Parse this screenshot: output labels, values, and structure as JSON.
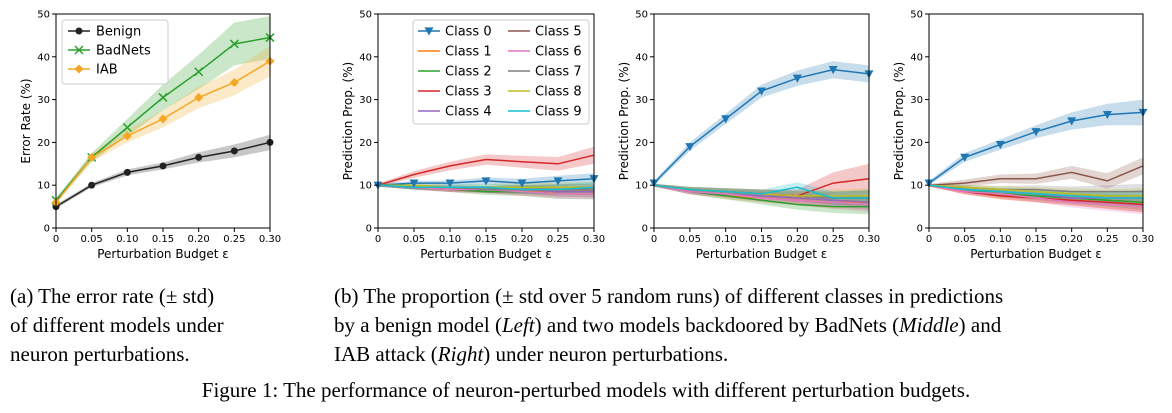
{
  "captions": {
    "a_lines": [
      "(a) The error rate (± std)",
      "of different models under",
      "neuron perturbations."
    ],
    "b_line1": "(b) The proportion (± std over 5 random runs) of different classes in predictions",
    "b_line2_pre": "by a benign model (",
    "b_line2_left": "Left",
    "b_line2_mid": ") and two models backdoored by BadNets (",
    "b_line2_middle": "Middle",
    "b_line2_post": ") and",
    "b_line3_pre": "IAB attack (",
    "b_line3_right": "Right",
    "b_line3_post": ") under neuron perturbations.",
    "figure": "Figure 1: The performance of neuron-perturbed models with different perturbation budgets."
  },
  "chart_data": [
    {
      "type": "line",
      "xlabel": "Perturbation Budget ε",
      "ylabel": "Error Rate (%)",
      "xlim": [
        0,
        0.3
      ],
      "ylim": [
        0,
        50
      ],
      "xticks": [
        "0",
        "0.05",
        "0.10",
        "0.15",
        "0.20",
        "0.25",
        "0.30"
      ],
      "yticks": [
        "0",
        "10",
        "20",
        "30",
        "40",
        "50"
      ],
      "legend_position": "top-left",
      "x": [
        0,
        0.05,
        0.1,
        0.15,
        0.2,
        0.25,
        0.3
      ],
      "series": [
        {
          "name": "Benign",
          "color": "#222222",
          "marker": "circle",
          "values": [
            5,
            10,
            13,
            14.5,
            16.5,
            18,
            20
          ],
          "std": [
            0.5,
            0.5,
            0.7,
            0.8,
            1.2,
            1.5,
            1.8
          ]
        },
        {
          "name": "BadNets",
          "color": "#2ca02c",
          "marker": "x",
          "values": [
            6.5,
            16.5,
            23.5,
            30.5,
            36.5,
            43,
            44.5
          ],
          "std": [
            0.5,
            1,
            2,
            3,
            4,
            5,
            5
          ]
        },
        {
          "name": "IAB",
          "color": "#f5a623",
          "marker": "diamond",
          "values": [
            6,
            16.5,
            21.5,
            25.5,
            30.5,
            34,
            39
          ],
          "std": [
            0.5,
            1,
            1.5,
            2,
            2.5,
            3,
            3.5
          ]
        }
      ]
    },
    {
      "type": "line",
      "xlabel": "Perturbation Budget ε",
      "ylabel": "Prediction Prop. (%)",
      "xlim": [
        0,
        0.3
      ],
      "ylim": [
        0,
        50
      ],
      "xticks": [
        "0",
        "0.05",
        "0.10",
        "0.15",
        "0.20",
        "0.25",
        "0.30"
      ],
      "yticks": [
        "0",
        "10",
        "20",
        "30",
        "40",
        "50"
      ],
      "legend_position": "top",
      "x": [
        0,
        0.05,
        0.1,
        0.15,
        0.2,
        0.25,
        0.3
      ],
      "series": [
        {
          "name": "Class 0",
          "color": "#1f77b4",
          "marker": "triangle-down",
          "values": [
            10,
            10.5,
            10.5,
            11,
            10.5,
            11,
            11.5
          ],
          "std": [
            0.3,
            0.5,
            0.6,
            0.8,
            1,
            1.2,
            1.3
          ]
        },
        {
          "name": "Class 1",
          "color": "#ff7f0e",
          "values": [
            10,
            9.5,
            9,
            9,
            8.5,
            8.5,
            8.5
          ],
          "std": [
            0.3,
            0.5,
            0.6,
            0.8,
            1,
            1.2,
            1.3
          ]
        },
        {
          "name": "Class 2",
          "color": "#2ca02c",
          "values": [
            10,
            9.5,
            9,
            8.5,
            8.5,
            8,
            8
          ],
          "std": [
            0.3,
            0.5,
            0.6,
            0.8,
            1,
            1.2,
            1.3
          ]
        },
        {
          "name": "Class 3",
          "color": "#d62728",
          "values": [
            10,
            12.5,
            14.5,
            16,
            15.5,
            15,
            17
          ],
          "std": [
            0.4,
            0.8,
            1,
            1.2,
            1.4,
            1.6,
            2
          ]
        },
        {
          "name": "Class 4",
          "color": "#9467bd",
          "values": [
            10,
            9.5,
            9.5,
            9,
            9,
            8.5,
            8.5
          ],
          "std": [
            0.3,
            0.5,
            0.6,
            0.8,
            1,
            1.2,
            1.3
          ]
        },
        {
          "name": "Class 5",
          "color": "#8c564b",
          "values": [
            10,
            9.5,
            9,
            9,
            9,
            9,
            9
          ],
          "std": [
            0.3,
            0.5,
            0.6,
            0.8,
            1,
            1.2,
            1.3
          ]
        },
        {
          "name": "Class 6",
          "color": "#e377c2",
          "values": [
            10,
            9.5,
            9,
            9,
            8.5,
            8,
            8
          ],
          "std": [
            0.3,
            0.5,
            0.6,
            0.8,
            1,
            1.2,
            1.3
          ]
        },
        {
          "name": "Class 7",
          "color": "#7f7f7f",
          "values": [
            10,
            9.5,
            9.5,
            9,
            9,
            9,
            9
          ],
          "std": [
            0.3,
            0.5,
            0.6,
            0.8,
            1,
            1.2,
            1.3
          ]
        },
        {
          "name": "Class 8",
          "color": "#bcbd22",
          "values": [
            10,
            10,
            9.5,
            9.5,
            9.5,
            9.5,
            9.5
          ],
          "std": [
            0.3,
            0.5,
            0.6,
            0.8,
            1,
            1.2,
            1.3
          ]
        },
        {
          "name": "Class 9",
          "color": "#17becf",
          "values": [
            10,
            9.5,
            9.5,
            9.5,
            9,
            9,
            9.5
          ],
          "std": [
            0.3,
            0.5,
            0.6,
            0.8,
            1,
            1.2,
            1.3
          ]
        }
      ]
    },
    {
      "type": "line",
      "xlabel": "Perturbation Budget ε",
      "ylabel": "Prediction Prop. (%)",
      "xlim": [
        0,
        0.3
      ],
      "ylim": [
        0,
        50
      ],
      "xticks": [
        "0",
        "0.05",
        "0.10",
        "0.15",
        "0.20",
        "0.25",
        "0.30"
      ],
      "yticks": [
        "0",
        "10",
        "20",
        "30",
        "40",
        "50"
      ],
      "x": [
        0,
        0.05,
        0.1,
        0.15,
        0.2,
        0.25,
        0.3
      ],
      "series": [
        {
          "color": "#1f77b4",
          "marker": "triangle-down",
          "values": [
            10.5,
            19,
            25.5,
            32,
            35,
            37,
            36
          ],
          "std": [
            0.5,
            1,
            1.2,
            1.5,
            1.8,
            2,
            2
          ]
        },
        {
          "color": "#ff7f0e",
          "values": [
            10,
            8.5,
            7.5,
            7,
            6.5,
            6,
            6
          ],
          "std": [
            0.3,
            0.6,
            0.8,
            1,
            1.2,
            1.5,
            1.8
          ]
        },
        {
          "color": "#2ca02c",
          "values": [
            10,
            8.5,
            7.5,
            6.5,
            5.5,
            5,
            5
          ],
          "std": [
            0.3,
            0.6,
            0.8,
            1,
            1.2,
            1.5,
            1.8
          ]
        },
        {
          "color": "#d62728",
          "values": [
            10,
            9,
            8.5,
            8,
            7.5,
            10.5,
            11.5
          ],
          "std": [
            0.3,
            0.6,
            0.8,
            1,
            1.5,
            2.5,
            3.5
          ]
        },
        {
          "color": "#9467bd",
          "values": [
            10,
            8.5,
            8,
            7.5,
            7,
            6.5,
            6
          ],
          "std": [
            0.3,
            0.6,
            0.8,
            1,
            1.2,
            1.5,
            1.8
          ]
        },
        {
          "color": "#8c564b",
          "values": [
            10,
            9,
            8.5,
            8,
            7.5,
            7,
            7
          ],
          "std": [
            0.3,
            0.6,
            0.8,
            1,
            1.2,
            1.5,
            1.8
          ]
        },
        {
          "color": "#e377c2",
          "values": [
            10,
            8.5,
            8,
            7,
            6.5,
            6,
            5.5
          ],
          "std": [
            0.3,
            0.6,
            0.8,
            1,
            1.2,
            1.5,
            1.8
          ]
        },
        {
          "color": "#7f7f7f",
          "values": [
            10,
            9,
            8.5,
            8,
            7.5,
            7,
            7
          ],
          "std": [
            0.3,
            0.6,
            0.8,
            1,
            1.2,
            1.5,
            1.8
          ]
        },
        {
          "color": "#bcbd22",
          "values": [
            10,
            9,
            8.5,
            8,
            7.5,
            7.5,
            7.5
          ],
          "std": [
            0.3,
            0.6,
            0.8,
            1,
            1.2,
            1.5,
            1.8
          ]
        },
        {
          "color": "#17becf",
          "values": [
            10,
            9,
            8.5,
            8,
            9.5,
            7,
            7
          ],
          "std": [
            0.3,
            0.6,
            0.8,
            1,
            1.2,
            1.5,
            1.8
          ]
        }
      ]
    },
    {
      "type": "line",
      "xlabel": "Perturbation Budget ε",
      "ylabel": "Prediction Prop. (%)",
      "xlim": [
        0,
        0.3
      ],
      "ylim": [
        0,
        50
      ],
      "xticks": [
        "0",
        "0.05",
        "0.10",
        "0.15",
        "0.20",
        "0.25",
        "0.30"
      ],
      "yticks": [
        "0",
        "10",
        "20",
        "30",
        "40",
        "50"
      ],
      "x": [
        0,
        0.05,
        0.1,
        0.15,
        0.2,
        0.25,
        0.3
      ],
      "series": [
        {
          "color": "#1f77b4",
          "marker": "triangle-down",
          "values": [
            10.5,
            16.5,
            19.5,
            22.5,
            25,
            26.5,
            27
          ],
          "std": [
            0.5,
            1,
            1.2,
            1.5,
            2,
            2.5,
            3
          ]
        },
        {
          "color": "#ff7f0e",
          "values": [
            10,
            8.5,
            7.5,
            7,
            6.5,
            6,
            5.5
          ],
          "std": [
            0.3,
            0.6,
            0.8,
            1,
            1.2,
            1.5,
            1.8
          ]
        },
        {
          "color": "#2ca02c",
          "values": [
            10,
            9,
            8,
            7.5,
            7,
            6.5,
            6
          ],
          "std": [
            0.3,
            0.6,
            0.8,
            1,
            1.2,
            1.5,
            1.8
          ]
        },
        {
          "color": "#d62728",
          "values": [
            10,
            8.5,
            7.5,
            7,
            6.5,
            6,
            5.5
          ],
          "std": [
            0.3,
            0.6,
            0.8,
            1,
            1.2,
            1.5,
            1.8
          ]
        },
        {
          "color": "#9467bd",
          "values": [
            10,
            9,
            8.5,
            8,
            7,
            7,
            7
          ],
          "std": [
            0.3,
            0.6,
            0.8,
            1,
            1.2,
            1.5,
            1.8
          ]
        },
        {
          "color": "#8c564b",
          "values": [
            10,
            10.5,
            11.5,
            11.5,
            13,
            11,
            14.5
          ],
          "std": [
            0.3,
            0.8,
            1,
            1.2,
            1.5,
            1.8,
            2
          ]
        },
        {
          "color": "#e377c2",
          "values": [
            10,
            8.5,
            8,
            7,
            6,
            5.5,
            5
          ],
          "std": [
            0.3,
            0.6,
            0.8,
            1,
            1.2,
            1.5,
            1.8
          ]
        },
        {
          "color": "#7f7f7f",
          "values": [
            10,
            9.5,
            9,
            9,
            8.5,
            8.5,
            8.5
          ],
          "std": [
            0.3,
            0.6,
            0.8,
            1,
            1.2,
            1.5,
            1.8
          ]
        },
        {
          "color": "#bcbd22",
          "values": [
            10,
            9.5,
            9,
            8.5,
            8,
            7.5,
            7.5
          ],
          "std": [
            0.3,
            0.6,
            0.8,
            1,
            1.2,
            1.5,
            1.8
          ]
        },
        {
          "color": "#17becf",
          "values": [
            10,
            9,
            8.5,
            8,
            7.5,
            7,
            7
          ],
          "std": [
            0.3,
            0.6,
            0.8,
            1,
            1.2,
            1.5,
            1.8
          ]
        }
      ]
    }
  ]
}
